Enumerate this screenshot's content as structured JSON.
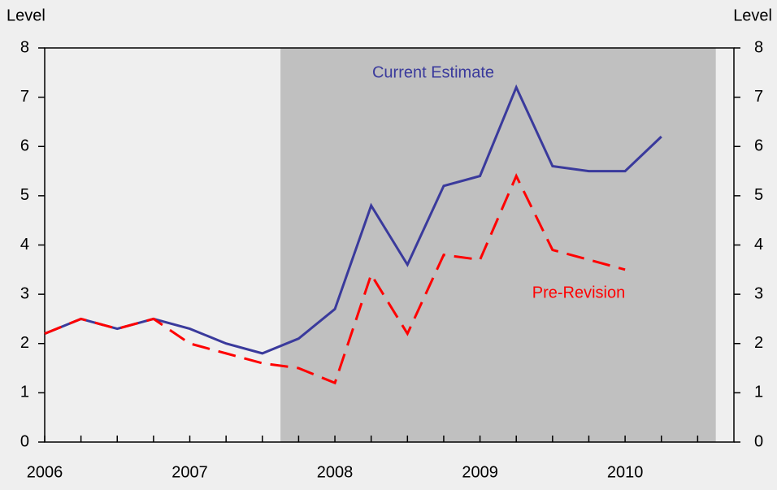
{
  "chart_data": {
    "type": "line",
    "ylabel": "Level",
    "y2label": "Level",
    "x": [
      2006.0,
      2006.25,
      2006.5,
      2006.75,
      2007.0,
      2007.25,
      2007.5,
      2007.75,
      2008.0,
      2008.25,
      2008.5,
      2008.75,
      2009.0,
      2009.25,
      2009.5,
      2009.75,
      2010.0,
      2010.25
    ],
    "series": [
      {
        "name": "Current Estimate",
        "color": "#3a3a9c",
        "dash": false,
        "values": [
          2.2,
          2.5,
          2.3,
          2.5,
          2.3,
          2.0,
          1.8,
          2.1,
          2.7,
          4.8,
          3.6,
          5.2,
          5.4,
          7.2,
          5.6,
          5.5,
          5.5,
          6.2
        ]
      },
      {
        "name": "Pre-Revision",
        "color": "#ff0000",
        "dash": true,
        "values": [
          2.2,
          2.5,
          2.3,
          2.5,
          2.0,
          1.8,
          1.6,
          1.5,
          1.2,
          3.4,
          2.2,
          3.8,
          3.7,
          5.4,
          3.9,
          3.7,
          3.5,
          null
        ]
      }
    ],
    "shade": [
      2007.625,
      2010.625
    ],
    "shade_color": "#c0c0c0",
    "xlim": [
      2006,
      2010.75
    ],
    "xticks": [
      2006,
      2007,
      2008,
      2009,
      2010
    ],
    "xminorticks": [
      2006.25,
      2006.5,
      2006.75,
      2007.25,
      2007.5,
      2007.75,
      2008.25,
      2008.5,
      2008.75,
      2009.25,
      2009.5,
      2009.75,
      2010.25,
      2010.5
    ],
    "ylim": [
      0,
      8
    ],
    "yticks": [
      0,
      1,
      2,
      3,
      4,
      5,
      6,
      7,
      8
    ],
    "y2lim": [
      0,
      8
    ],
    "y2ticks": [
      0,
      1,
      2,
      3,
      4,
      5,
      6,
      7,
      8
    ]
  }
}
